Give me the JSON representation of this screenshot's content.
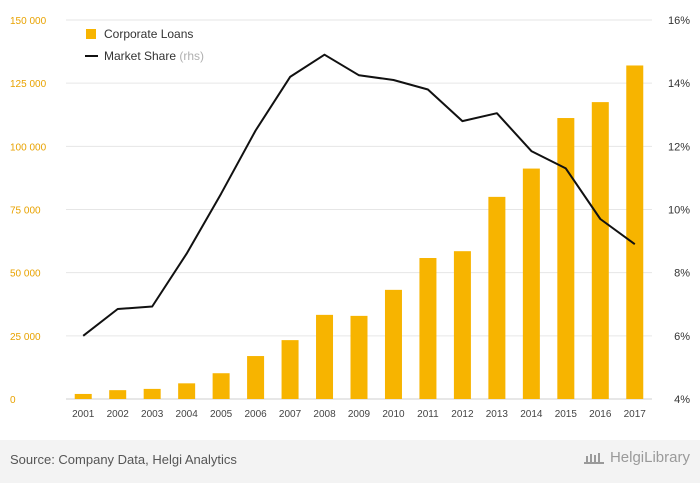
{
  "chart_data": {
    "type": "bar+line",
    "categories": [
      "2001",
      "2002",
      "2003",
      "2004",
      "2005",
      "2006",
      "2007",
      "2008",
      "2009",
      "2010",
      "2011",
      "2012",
      "2013",
      "2014",
      "2015",
      "2016",
      "2017"
    ],
    "series": [
      {
        "name": "Corporate Loans",
        "type": "bar",
        "axis": "left",
        "color": "#f7b400",
        "values": [
          2000,
          3500,
          4000,
          6200,
          10200,
          17000,
          23300,
          33300,
          32900,
          43200,
          55800,
          58500,
          80000,
          91200,
          111200,
          117500,
          132000
        ]
      },
      {
        "name": "Market Share",
        "name_suffix": "(rhs)",
        "type": "line",
        "axis": "right",
        "color": "#111111",
        "values": [
          6.0,
          6.85,
          6.93,
          8.6,
          10.5,
          12.5,
          14.2,
          14.9,
          14.25,
          14.1,
          13.8,
          12.8,
          13.05,
          11.85,
          11.3,
          9.7,
          8.9
        ]
      }
    ],
    "y_left": {
      "min": 0,
      "max": 150000,
      "ticks": [
        0,
        25000,
        50000,
        75000,
        100000,
        125000,
        150000
      ],
      "tick_labels": [
        "0",
        "25 000",
        "50 000",
        "75 000",
        "100 000",
        "125 000",
        "150 000"
      ]
    },
    "y_right": {
      "min": 4,
      "max": 16,
      "ticks": [
        4,
        6,
        8,
        10,
        12,
        14,
        16
      ],
      "tick_labels": [
        "4%",
        "6%",
        "8%",
        "10%",
        "12%",
        "14%",
        "16%"
      ]
    },
    "grid": true,
    "legend_position": "top-left"
  },
  "footer": {
    "source": "Source: Company Data, Helgi Analytics",
    "brand": "HelgiLibrary"
  },
  "colors": {
    "bar": "#f7b400",
    "line": "#111111",
    "left_axis_text": "#e8a200",
    "right_axis_text": "#333333",
    "grid": "#e6e6e6"
  }
}
